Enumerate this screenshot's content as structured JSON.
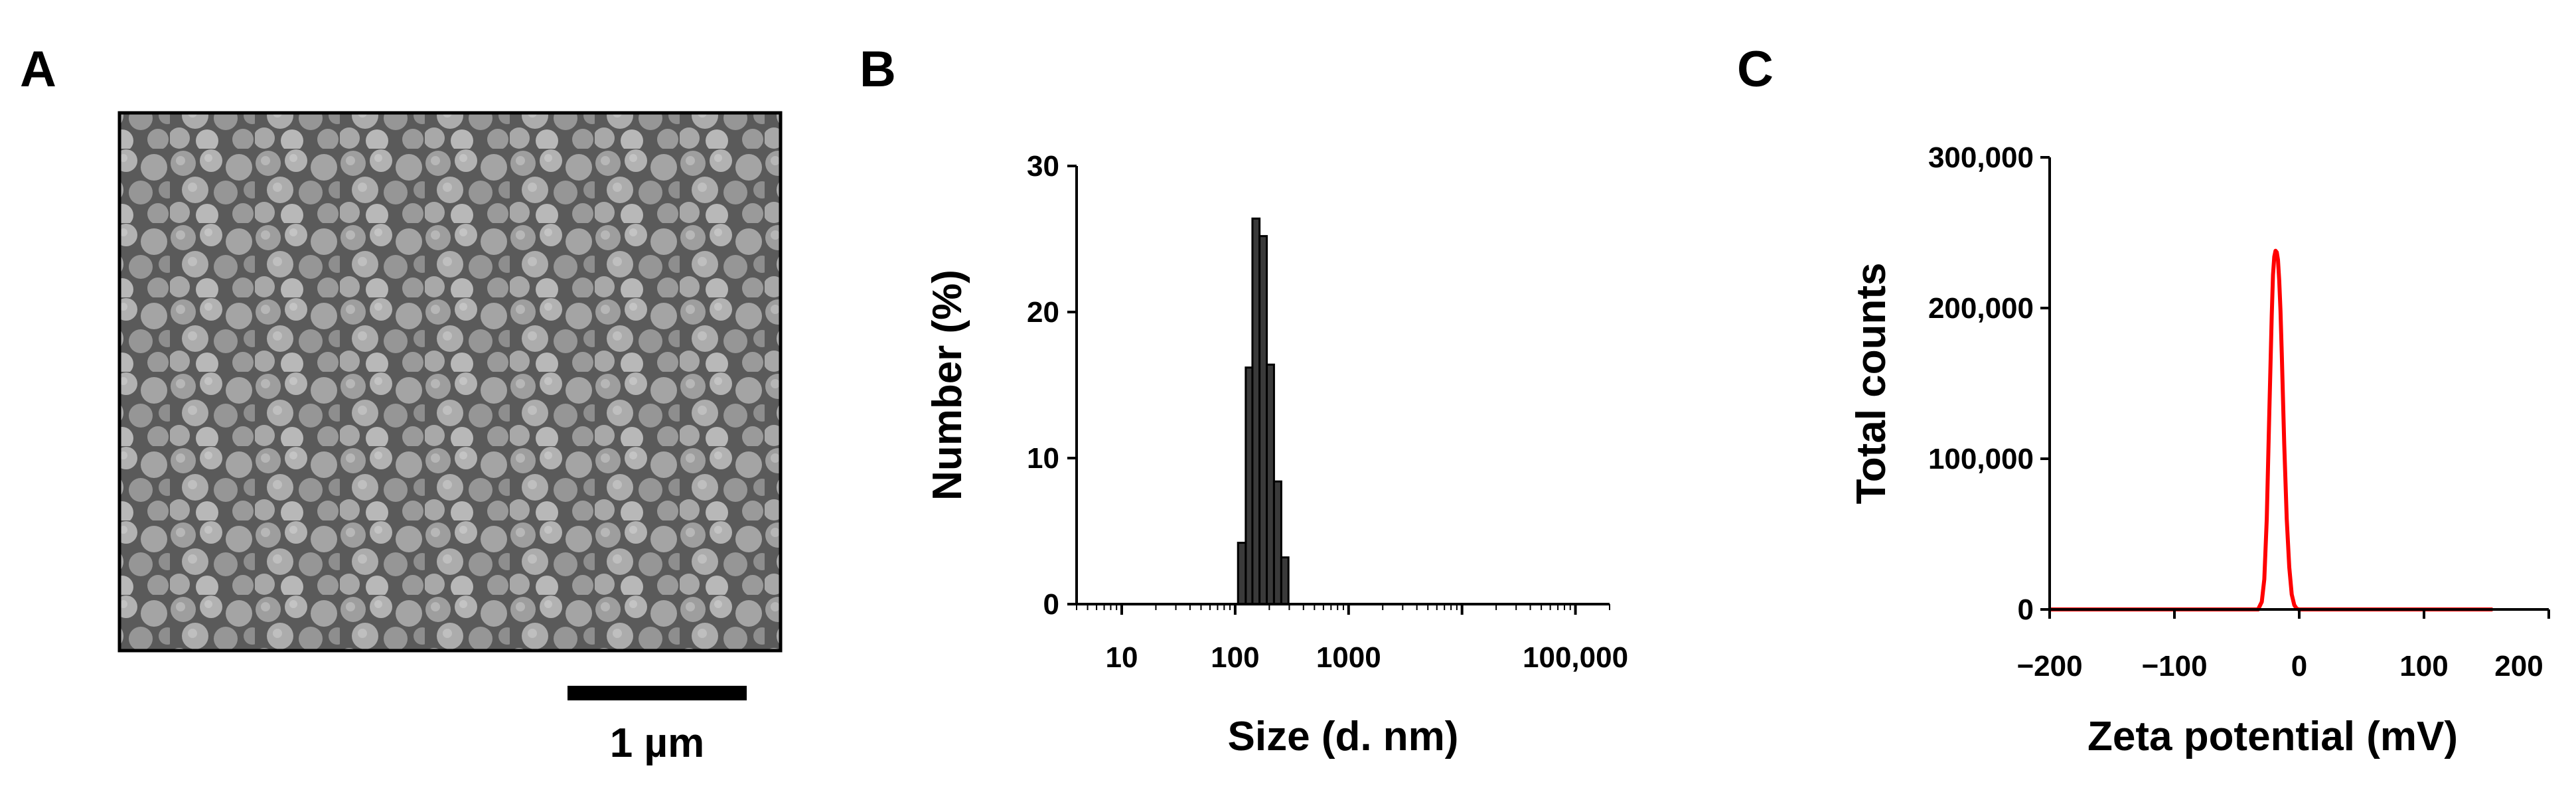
{
  "panels": {
    "a": {
      "letter": "A",
      "image_alt": "SEM micrograph of spherical nanoparticles",
      "scale_bar_label": "1 µm"
    },
    "b": {
      "letter": "B"
    },
    "c": {
      "letter": "C"
    }
  },
  "colors": {
    "bar_fill": "#3a3a3a",
    "line_red": "#ff0000",
    "axis": "#000000",
    "sem_bg": "#6b6b6b"
  },
  "chart_data": [
    {
      "id": "B",
      "type": "bar",
      "xscale": "log",
      "xlabel": "Size (d. nm)",
      "ylabel": "Number (%)",
      "xlim": [
        4,
        200000
      ],
      "ylim": [
        0,
        30
      ],
      "yticks": [
        0,
        10,
        20,
        30
      ],
      "yticklabels": [
        "0",
        "10",
        "20",
        "30"
      ],
      "xticks": [
        10,
        100,
        1000,
        100000
      ],
      "xticklabels": [
        "10",
        "100",
        "1000",
        "100,000"
      ],
      "bins": [
        {
          "lo": 106,
          "hi": 124,
          "value": 4.2
        },
        {
          "lo": 124,
          "hi": 142,
          "value": 16.2
        },
        {
          "lo": 142,
          "hi": 164,
          "value": 26.4
        },
        {
          "lo": 164,
          "hi": 190,
          "value": 25.2
        },
        {
          "lo": 190,
          "hi": 220,
          "value": 16.4
        },
        {
          "lo": 220,
          "hi": 255,
          "value": 8.4
        },
        {
          "lo": 255,
          "hi": 295,
          "value": 3.2
        }
      ]
    },
    {
      "id": "C",
      "type": "line",
      "xlabel": "Zeta potential (mV)",
      "ylabel": "Total counts",
      "xlim": [
        -200,
        200
      ],
      "ylim": [
        0,
        300000
      ],
      "xticks": [
        -200,
        -100,
        0,
        100,
        200
      ],
      "xticklabels": [
        "−200",
        "−100",
        "0",
        "100",
        "200"
      ],
      "yticks": [
        0,
        100000,
        200000,
        300000
      ],
      "yticklabels": [
        "0",
        "100,000",
        "200,000",
        "300,000"
      ],
      "series": [
        {
          "color": "#ff0000",
          "x": [
            -200,
            -50,
            -33,
            -30,
            -28,
            -26,
            -24,
            -22,
            -21,
            -20,
            -19,
            -18,
            -17,
            -16,
            -15,
            -14,
            -12,
            -10,
            -8,
            -6,
            -4,
            -2,
            0,
            155
          ],
          "y": [
            0,
            0,
            0,
            5000,
            20000,
            60000,
            130000,
            195000,
            222000,
            234000,
            238000,
            237000,
            232000,
            218000,
            198000,
            170000,
            110000,
            60000,
            28000,
            10000,
            3000,
            500,
            0,
            0
          ]
        }
      ]
    }
  ]
}
